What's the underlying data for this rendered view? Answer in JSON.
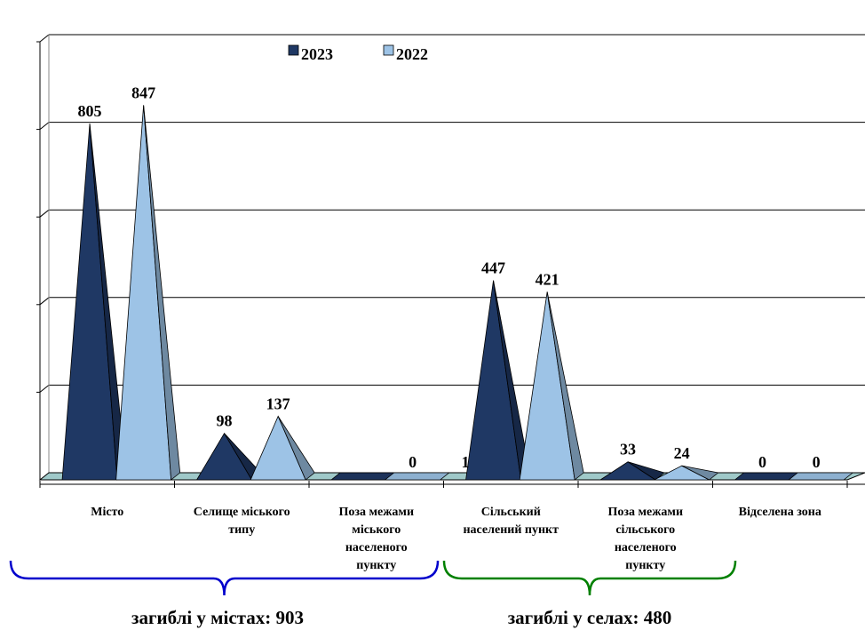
{
  "chart_data": {
    "type": "bar",
    "bar_shape": "pyramid",
    "categories": [
      "Місто",
      "Селище міського типу",
      "Поза межами міського населеного пункту",
      "Сільський населений пункт",
      "Поза межами сільського населеного пункту",
      "Відселена зона"
    ],
    "category_lines": [
      [
        "Місто"
      ],
      [
        "Селище міського",
        "типу"
      ],
      [
        "Поза межами",
        "міського",
        "населеного",
        "пункту"
      ],
      [
        "Сільський",
        "населений пункт"
      ],
      [
        "Поза межами",
        "сільського",
        "населеного",
        "пункту"
      ],
      [
        "Відселена зона"
      ]
    ],
    "series": [
      {
        "name": "2023",
        "values": [
          805,
          98,
          0,
          447,
          33,
          0
        ],
        "color": "#1F3864"
      },
      {
        "name": "2022",
        "values": [
          847,
          137,
          0,
          421,
          24,
          0
        ],
        "color": "#9DC3E6"
      }
    ],
    "data_labels": [
      [
        "805",
        "98",
        "",
        "447",
        "33",
        "0"
      ],
      [
        "847",
        "137",
        "0",
        "421",
        "24",
        "0"
      ]
    ],
    "stray_label": "1",
    "ylim": [
      0,
      1000
    ],
    "y_tick_step": 200,
    "grid": true,
    "legend_position": "top-center",
    "groups": [
      {
        "label": "загиблі у містах: 903",
        "color": "#0000CC",
        "categories": [
          0,
          1,
          2
        ]
      },
      {
        "label": "загиблі у селах: 480",
        "color": "#008000",
        "categories": [
          3,
          4,
          5
        ]
      }
    ]
  }
}
